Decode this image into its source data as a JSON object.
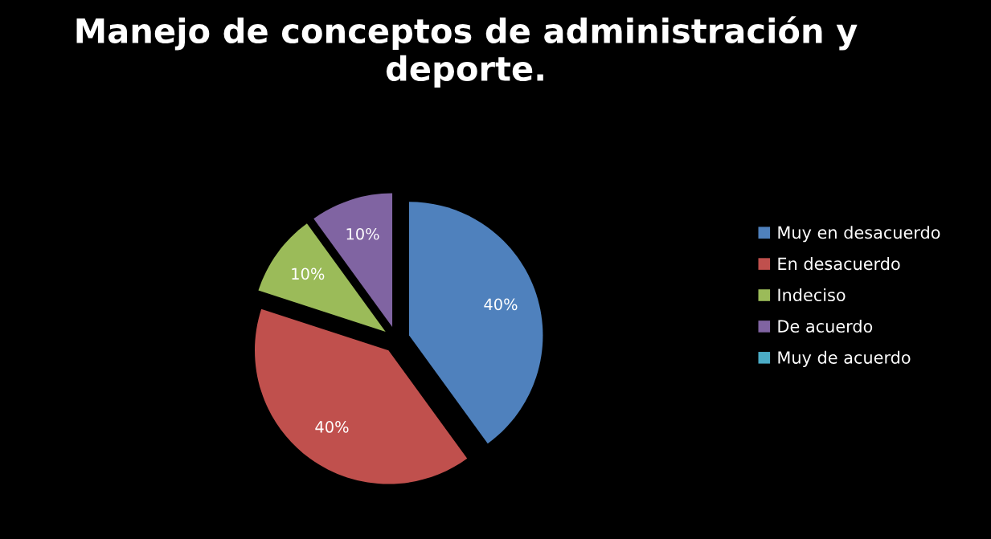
{
  "chart_data": {
    "type": "pie",
    "title": "Manejo de conceptos de administración y deporte.",
    "categories": [
      "Muy en desacuerdo",
      "En desacuerdo",
      "Indeciso",
      "De acuerdo",
      "Muy de acuerdo"
    ],
    "values": [
      40,
      40,
      10,
      10,
      0
    ],
    "value_labels": [
      "40%",
      "40%",
      "10%",
      "10%",
      null
    ],
    "colors": [
      "#4f81bd",
      "#c0504d",
      "#9bbb59",
      "#8064a2",
      "#4bacc6"
    ],
    "legend": "right"
  }
}
